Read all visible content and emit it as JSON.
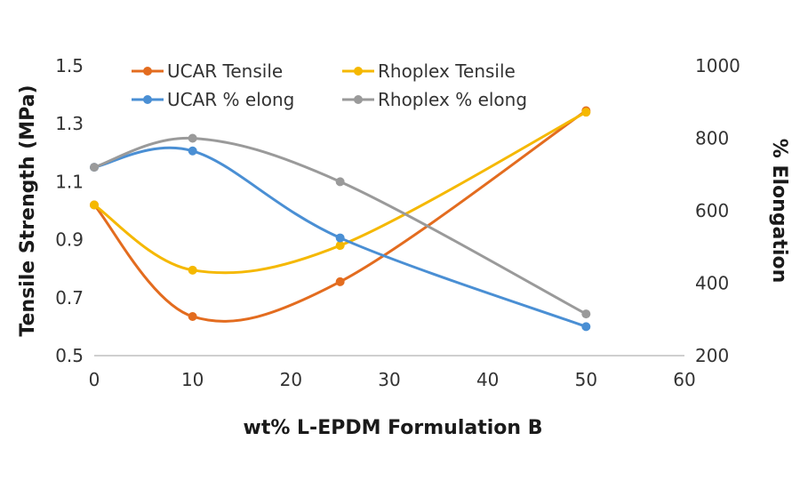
{
  "chart_data": {
    "type": "line",
    "title": "",
    "xlabel": "wt% L-EPDM Formulation B",
    "ylabel_left": "Tensile Strength (MPa)",
    "ylabel_right": "% Elongation",
    "xlim": [
      0,
      60
    ],
    "ylim_left": [
      0.5,
      1.5
    ],
    "ylim_right": [
      200,
      1000
    ],
    "x_ticks": [
      "0",
      "10",
      "20",
      "30",
      "40",
      "50",
      "60"
    ],
    "y_left_ticks": [
      "0.5",
      "0.7",
      "0.9",
      "1.1",
      "1.3",
      "1.5"
    ],
    "y_right_ticks": [
      "200",
      "400",
      "600",
      "800",
      "1000"
    ],
    "grid": false,
    "legend": "top",
    "series": [
      {
        "name": "UCAR Tensile",
        "axis": "left",
        "color": "#E36C1F",
        "x": [
          0,
          10,
          25,
          50
        ],
        "y": [
          1.02,
          0.635,
          0.755,
          1.345
        ]
      },
      {
        "name": "Rhoplex Tensile",
        "axis": "left",
        "color": "#F5B800",
        "x": [
          0,
          10,
          25,
          50
        ],
        "y": [
          1.02,
          0.795,
          0.88,
          1.34
        ]
      },
      {
        "name": "UCAR % elong",
        "axis": "right",
        "color": "#4A8FD4",
        "x": [
          0,
          10,
          25,
          50
        ],
        "y": [
          720,
          765,
          525,
          280
        ]
      },
      {
        "name": "Rhoplex % elong",
        "axis": "right",
        "color": "#9A9A9A",
        "x": [
          0,
          10,
          25,
          50
        ],
        "y": [
          720,
          800,
          680,
          315
        ]
      }
    ]
  }
}
